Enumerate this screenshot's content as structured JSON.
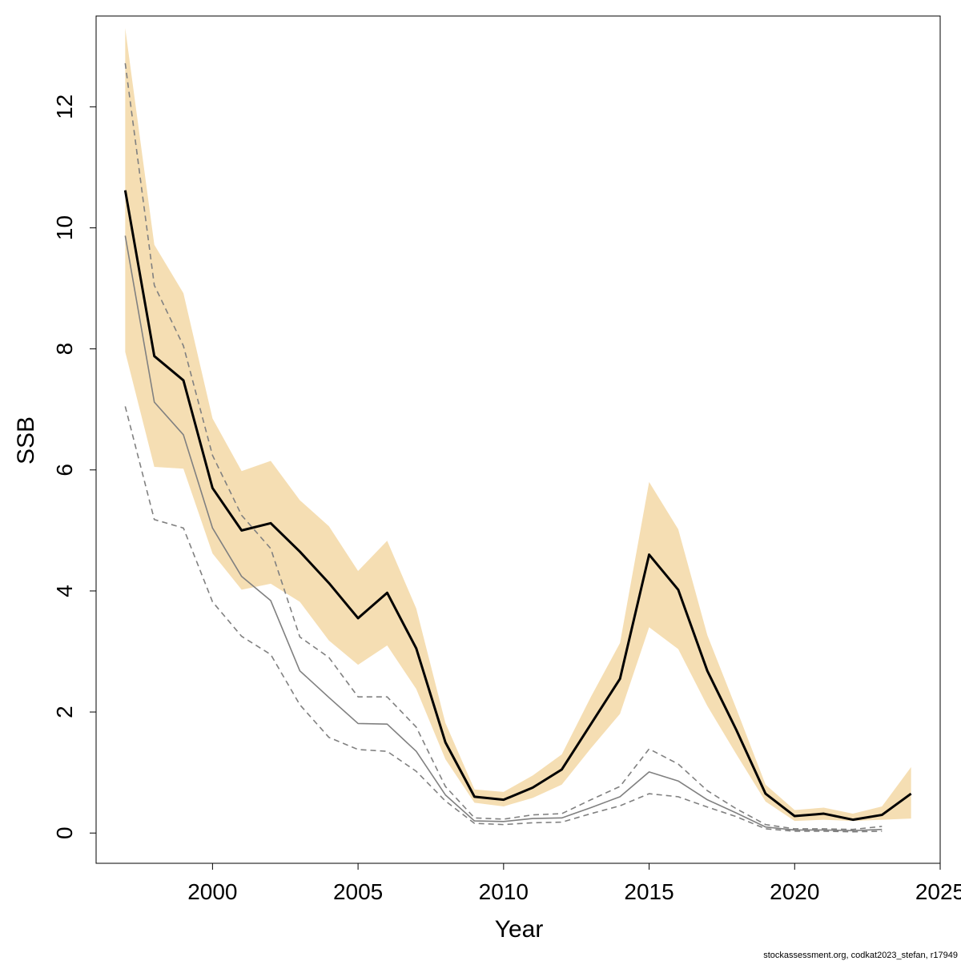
{
  "chart_data": {
    "type": "line",
    "title": "",
    "xlabel": "Year",
    "ylabel": "SSB",
    "xlim": [
      1996,
      2025
    ],
    "ylim": [
      -0.5,
      13.5
    ],
    "x_ticks": [
      2000,
      2005,
      2010,
      2015,
      2020,
      2025
    ],
    "y_ticks": [
      0,
      2,
      4,
      6,
      8,
      10,
      12
    ],
    "grid": false,
    "legend": "none",
    "x": [
      1997,
      1998,
      1999,
      2000,
      2001,
      2002,
      2003,
      2004,
      2005,
      2006,
      2007,
      2008,
      2009,
      2010,
      2011,
      2012,
      2013,
      2014,
      2015,
      2016,
      2017,
      2018,
      2019,
      2020,
      2021,
      2022,
      2023,
      2024
    ],
    "series": [
      {
        "style": "band",
        "color": "#f5deb3",
        "lower": [
          7.95,
          6.05,
          6.02,
          4.62,
          4.02,
          4.12,
          3.82,
          3.18,
          2.78,
          3.1,
          2.38,
          1.22,
          0.5,
          0.44,
          0.58,
          0.8,
          1.4,
          1.97,
          3.4,
          3.04,
          2.1,
          1.3,
          0.52,
          0.2,
          0.22,
          0.2,
          0.22,
          0.24
        ],
        "upper": [
          13.3,
          9.72,
          8.92,
          6.85,
          5.98,
          6.15,
          5.5,
          5.07,
          4.33,
          4.83,
          3.71,
          1.82,
          0.72,
          0.68,
          0.95,
          1.3,
          2.25,
          3.14,
          5.8,
          5.02,
          3.27,
          2.05,
          0.8,
          0.38,
          0.42,
          0.32,
          0.44,
          1.09
        ]
      },
      {
        "style": "solid-black",
        "color": "#000000",
        "values": [
          10.62,
          7.88,
          7.48,
          5.7,
          5.0,
          5.12,
          4.65,
          4.13,
          3.55,
          3.97,
          3.05,
          1.5,
          0.6,
          0.55,
          0.75,
          1.05,
          1.8,
          2.55,
          4.6,
          4.02,
          2.68,
          1.7,
          0.65,
          0.28,
          0.32,
          0.22,
          0.3,
          0.65
        ]
      },
      {
        "style": "solid-gray",
        "color": "#808080",
        "values": [
          9.87,
          7.12,
          6.58,
          5.04,
          4.24,
          3.84,
          2.68,
          2.24,
          1.81,
          1.8,
          1.35,
          0.63,
          0.2,
          0.19,
          0.24,
          0.25,
          0.42,
          0.6,
          1.01,
          0.86,
          0.55,
          0.33,
          0.1,
          0.05,
          0.05,
          0.04,
          0.06,
          null
        ]
      },
      {
        "style": "dashed-gray-upper",
        "color": "#808080",
        "values": [
          12.72,
          9.05,
          8.05,
          6.24,
          5.25,
          4.7,
          3.24,
          2.9,
          2.25,
          2.25,
          1.75,
          0.77,
          0.25,
          0.23,
          0.3,
          0.32,
          0.55,
          0.77,
          1.39,
          1.14,
          0.7,
          0.4,
          0.14,
          0.07,
          0.07,
          0.06,
          0.11,
          null
        ]
      },
      {
        "style": "dashed-gray-lower",
        "color": "#808080",
        "values": [
          7.05,
          5.18,
          5.04,
          3.82,
          3.25,
          2.95,
          2.12,
          1.58,
          1.38,
          1.35,
          1.02,
          0.53,
          0.16,
          0.14,
          0.17,
          0.18,
          0.32,
          0.45,
          0.65,
          0.6,
          0.43,
          0.27,
          0.07,
          0.03,
          0.03,
          0.02,
          0.03,
          null
        ]
      }
    ]
  },
  "footer": "stockassessment.org, codkat2023_stefan, r17949"
}
